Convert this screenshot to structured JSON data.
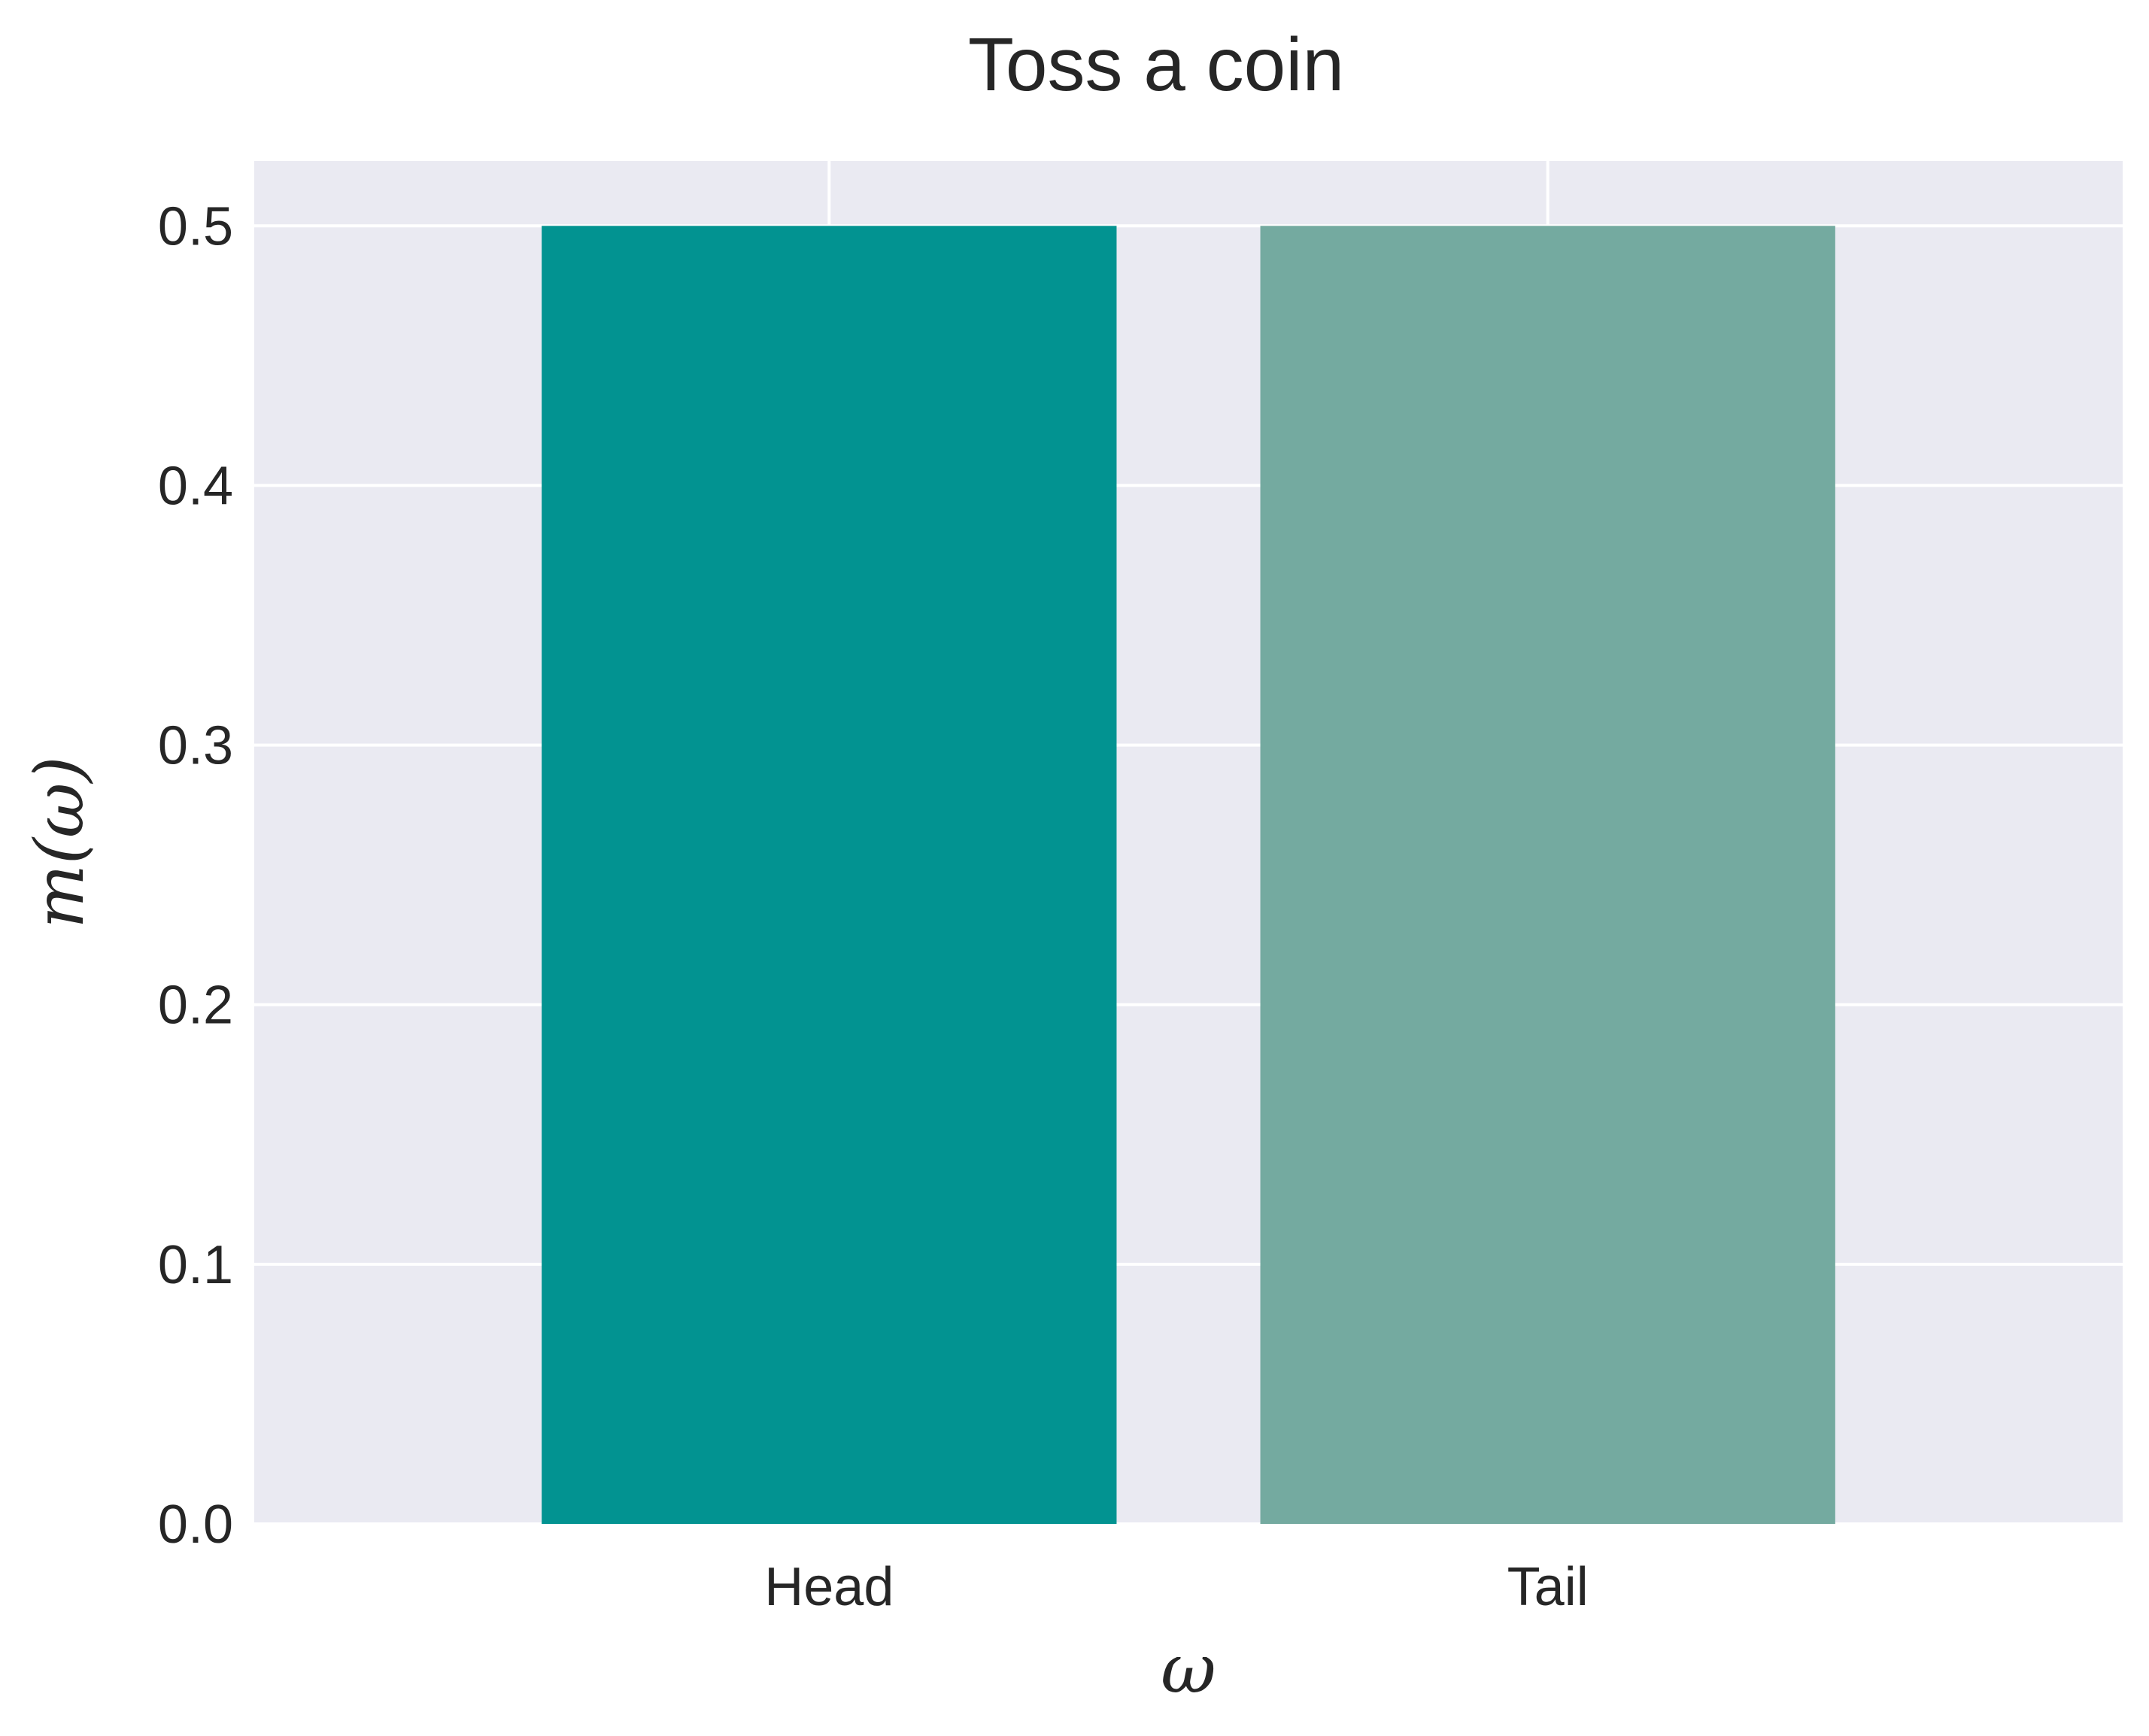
{
  "chart_data": {
    "type": "bar",
    "title": "Toss a coin",
    "xlabel": "ω",
    "ylabel": "m(ω)",
    "categories": [
      "Head",
      "Tail"
    ],
    "values": [
      0.5,
      0.5
    ],
    "bar_colors": [
      "#029391",
      "#74aaa0"
    ],
    "ylim": [
      0,
      0.525
    ],
    "yticks": [
      "0.0",
      "0.1",
      "0.2",
      "0.3",
      "0.4",
      "0.5"
    ],
    "ytick_values": [
      0,
      0.1,
      0.2,
      0.3,
      0.4,
      0.5
    ],
    "grid": true,
    "legend": "none",
    "background_color": "#eaeaf2",
    "grid_color": "#ffffff"
  }
}
